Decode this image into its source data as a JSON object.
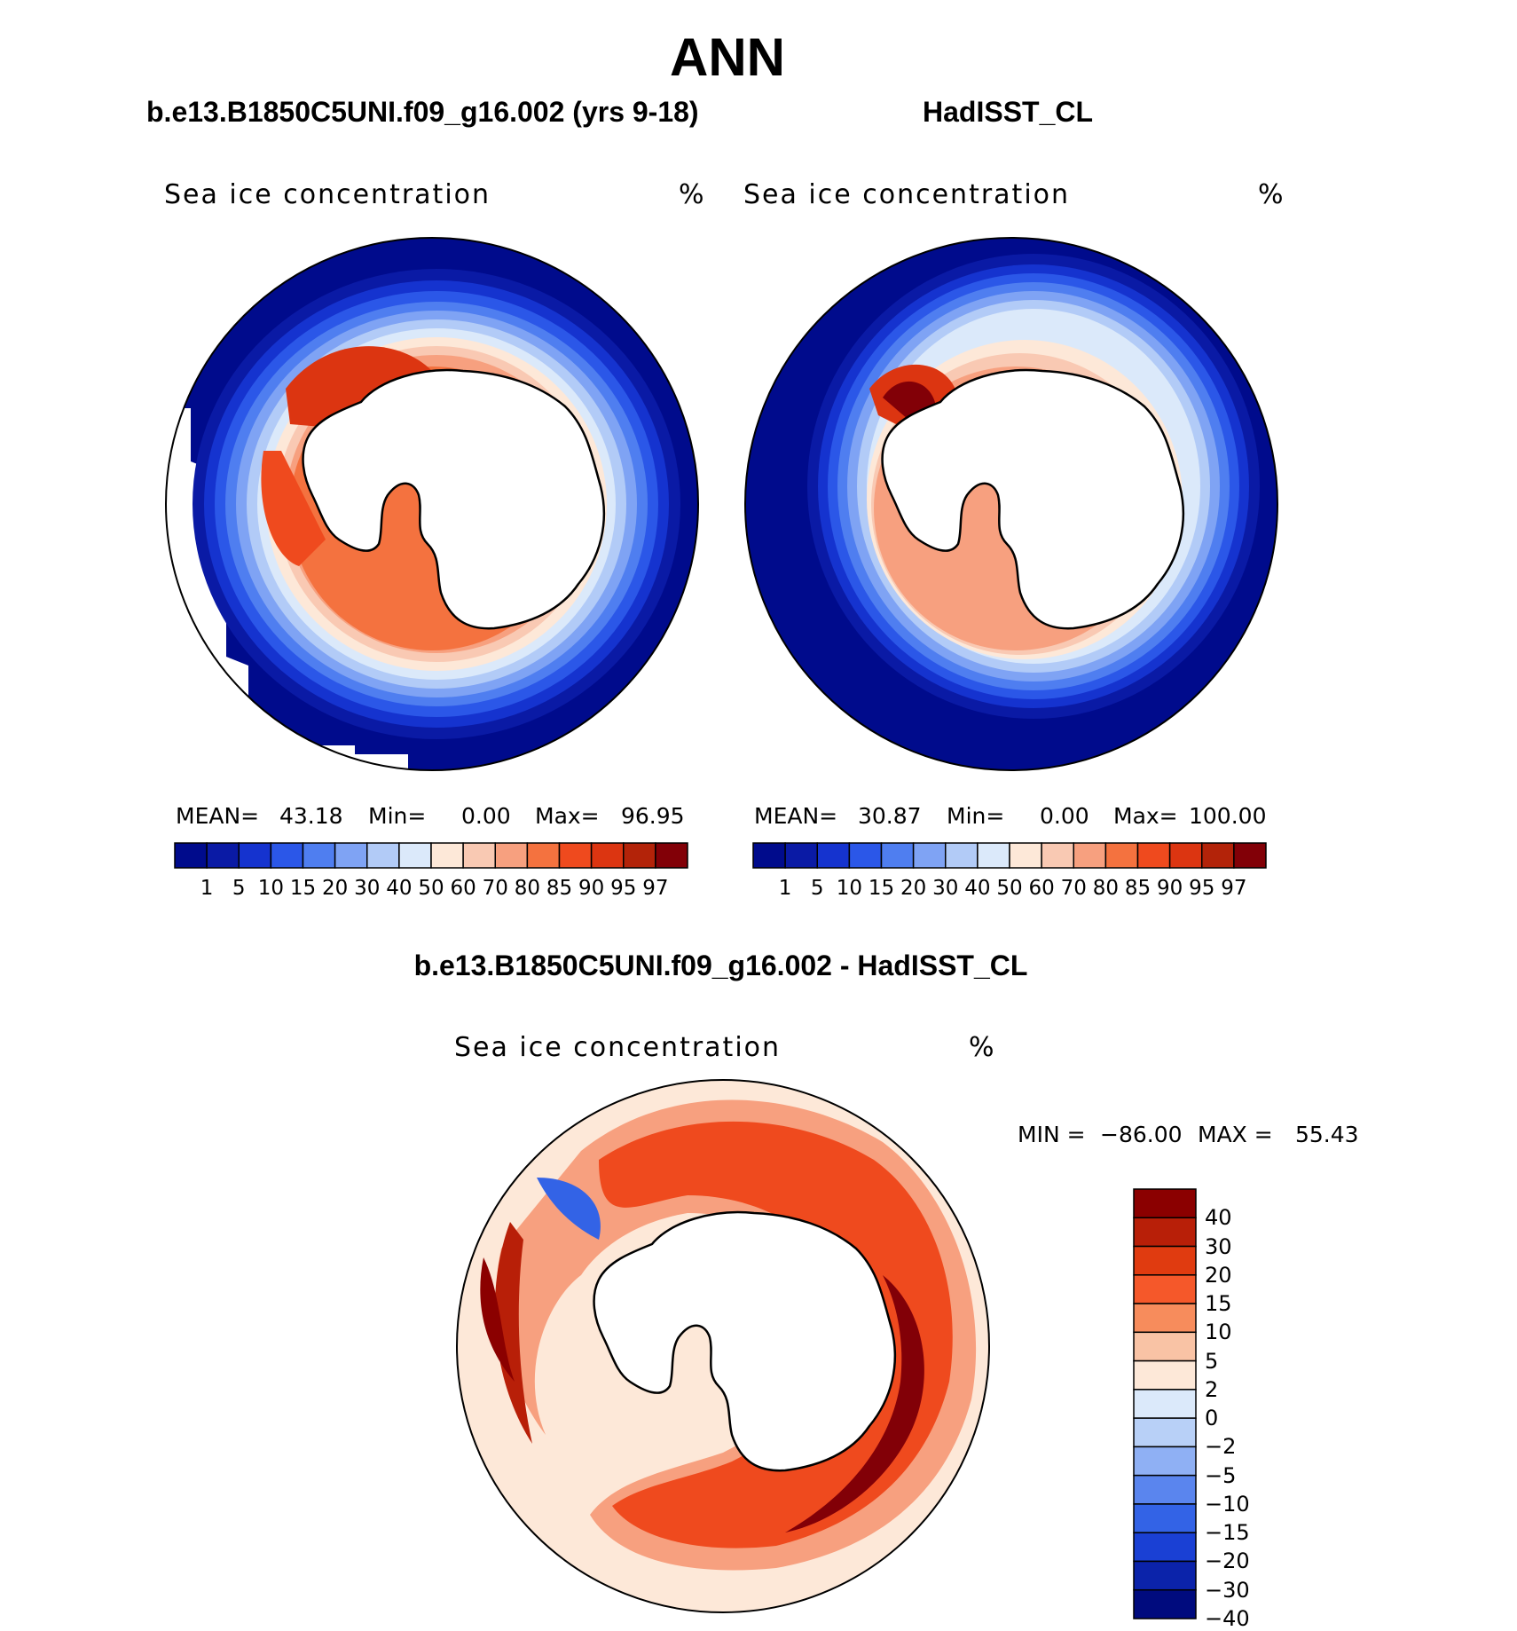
{
  "title": "ANN",
  "panels": [
    {
      "heading": "b.e13.B1850C5UNI.f09_g16.002 (yrs 9-18)",
      "subtitle": "Sea ice concentration",
      "unit": "%",
      "stats": {
        "mean_label": "MEAN=",
        "mean": "43.18",
        "min_label": "Min=",
        "min": "0.00",
        "max_label": "Max=",
        "max": "96.95"
      }
    },
    {
      "heading": "HadISST_CL",
      "subtitle": "Sea ice concentration",
      "unit": "%",
      "stats": {
        "mean_label": "MEAN=",
        "mean": "30.87",
        "min_label": "Min=",
        "min": "0.00",
        "max_label": "Max=",
        "max": "100.00"
      }
    }
  ],
  "difference": {
    "heading": "b.e13.B1850C5UNI.f09_g16.002 - HadISST_CL",
    "subtitle": "Sea ice concentration",
    "unit": "%",
    "minmax": {
      "min_label": "MIN =",
      "min": "−86.00",
      "max_label": "MAX =",
      "max": "55.43"
    }
  },
  "concentration_scale": {
    "colors": [
      "#000b8c",
      "#0a1aa5",
      "#1533cf",
      "#2b57e8",
      "#4f7ef0",
      "#7fa3f4",
      "#b2cbf7",
      "#dbe9fa",
      "#fde8d8",
      "#f9c9b3",
      "#f7a07f",
      "#f4723f",
      "#ef4a1e",
      "#dc3511",
      "#b32309",
      "#820007"
    ],
    "labels": [
      "1",
      "5",
      "10",
      "15",
      "20",
      "30",
      "40",
      "50",
      "60",
      "70",
      "80",
      "85",
      "90",
      "95",
      "97"
    ]
  },
  "difference_scale": {
    "colors": [
      "#8b0000",
      "#b81f08",
      "#e03b10",
      "#f5582a",
      "#f78c5c",
      "#f9c3a5",
      "#fde8d8",
      "#dbe9fa",
      "#b8d0f7",
      "#8fb0f4",
      "#5a85ee",
      "#3363e6",
      "#1a40d4",
      "#0b23aa",
      "#000b7e"
    ],
    "labels": [
      "40",
      "30",
      "20",
      "15",
      "10",
      "5",
      "2",
      "0",
      "−2",
      "−5",
      "−10",
      "−15",
      "−20",
      "−30",
      "−40"
    ]
  },
  "map_colors": {
    "ocean_open": "#000b8c",
    "land": "#ffffff",
    "coast": "#000000",
    "diff_background": "#fde8d8"
  }
}
